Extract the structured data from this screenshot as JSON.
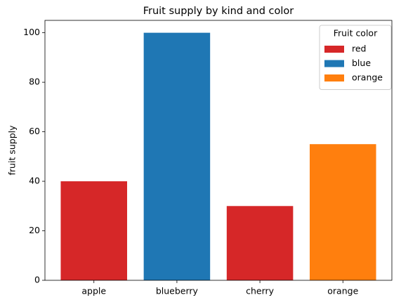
{
  "chart_data": {
    "type": "bar",
    "title": "Fruit supply by kind and color",
    "ylabel": "fruit supply",
    "categories": [
      "apple",
      "blueberry",
      "cherry",
      "orange"
    ],
    "values": [
      40,
      100,
      30,
      55
    ],
    "colors": [
      "#d62728",
      "#1f77b4",
      "#d62728",
      "#ff7f0e"
    ],
    "ylim": [
      0,
      105
    ],
    "yticks": [
      0,
      20,
      40,
      60,
      80,
      100
    ],
    "legend": {
      "title": "Fruit color",
      "position": "upper right",
      "entries": [
        {
          "label": "red",
          "color": "#d62728"
        },
        {
          "label": "blue",
          "color": "#1f77b4"
        },
        {
          "label": "orange",
          "color": "#ff7f0e"
        }
      ]
    }
  }
}
